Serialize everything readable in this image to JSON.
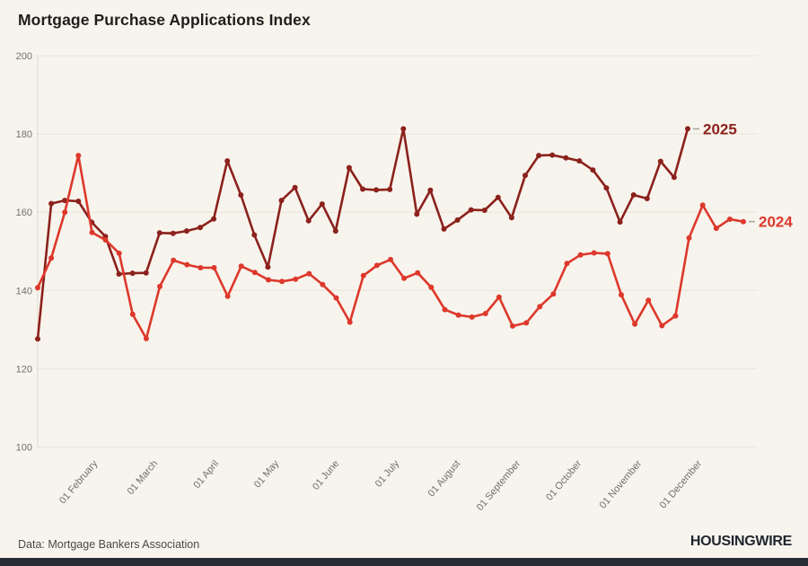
{
  "title": "Mortgage Purchase Applications Index",
  "footer": {
    "source": "Data: Mortgage Bankers Association",
    "brand": "HOUSINGWIRE"
  },
  "colors": {
    "background": "#f7f4ed",
    "grid": "#e9e4da",
    "axis_line": "#ded9cf",
    "axis_text": "#71706c",
    "title_text": "#1f1e1c",
    "series_2025": "#8c211c",
    "series_2024": "#dd382b",
    "label_dash": "#a8a49c",
    "source_text": "#4a4945",
    "brand_text": "#1f242e",
    "brand_bar": "#262b36"
  },
  "chart_data": {
    "type": "line",
    "title": "Mortgage Purchase Applications Index",
    "xlabel": "",
    "ylabel": "",
    "ylim": [
      100,
      200
    ],
    "y_ticks": [
      200,
      180,
      160,
      140,
      120,
      100
    ],
    "grid": "horizontal",
    "legend_position": "end-of-line",
    "x_tick_labels": [
      "01 February",
      "01 March",
      "01 April",
      "01 May",
      "01 June",
      "01 July",
      "01 August",
      "01 September",
      "01 October",
      "01 November",
      "01 December"
    ],
    "x_unit": "weekly observations, January through December",
    "series": [
      {
        "name": "2025",
        "color": "#8c211c",
        "values": [
          127.6,
          162.2,
          163.0,
          162.8,
          157.4,
          153.8,
          144.2,
          144.4,
          144.5,
          154.7,
          154.6,
          155.2,
          156.1,
          158.3,
          173.1,
          164.4,
          154.2,
          146.0,
          163.0,
          166.3,
          157.8,
          162.1,
          155.2,
          171.4,
          165.9,
          165.7,
          165.8,
          181.3,
          159.5,
          165.6,
          155.7,
          158.0,
          160.6,
          160.5,
          163.8,
          158.6,
          169.4,
          174.5,
          174.6,
          173.9,
          173.1,
          170.8,
          166.2,
          157.5,
          164.4,
          163.5,
          173.0,
          168.9,
          181.3
        ]
      },
      {
        "name": "2024",
        "color": "#dd382b",
        "values": [
          140.7,
          148.3,
          160.0,
          174.5,
          154.8,
          152.9,
          149.5,
          133.9,
          127.7,
          141.0,
          147.7,
          146.6,
          145.8,
          145.8,
          138.5,
          146.2,
          144.6,
          142.7,
          142.3,
          142.9,
          144.3,
          141.5,
          138.1,
          131.9,
          143.8,
          146.4,
          147.9,
          143.1,
          144.5,
          140.8,
          135.1,
          133.7,
          133.2,
          134.1,
          138.3,
          130.9,
          131.7,
          135.9,
          139.1,
          146.9,
          149.1,
          149.6,
          149.4,
          138.9,
          131.4,
          137.5,
          131.0,
          133.5,
          153.4,
          161.8,
          155.9,
          158.2,
          157.6
        ]
      }
    ]
  }
}
